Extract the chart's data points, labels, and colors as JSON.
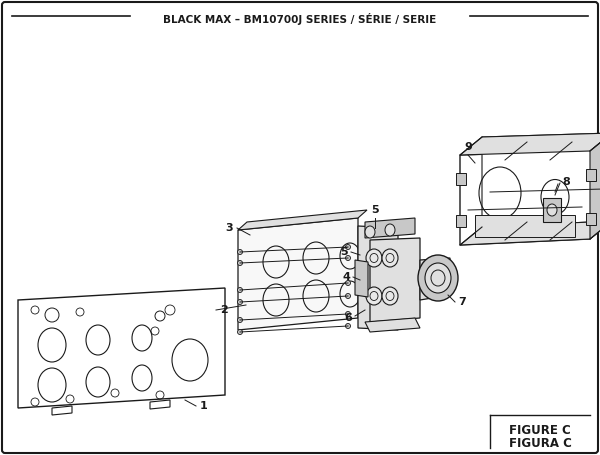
{
  "title": "BLACK MAX – BM10700J SERIES / SÉRIE / SERIE",
  "figure_label": "FIGURE C",
  "figura_label": "FIGURA C",
  "bg_color": "#ffffff",
  "line_color": "#1a1a1a",
  "text_color": "#1a1a1a",
  "gray_fill": "#f0f0f0",
  "mid_gray": "#e0e0e0",
  "dark_gray": "#c8c8c8"
}
